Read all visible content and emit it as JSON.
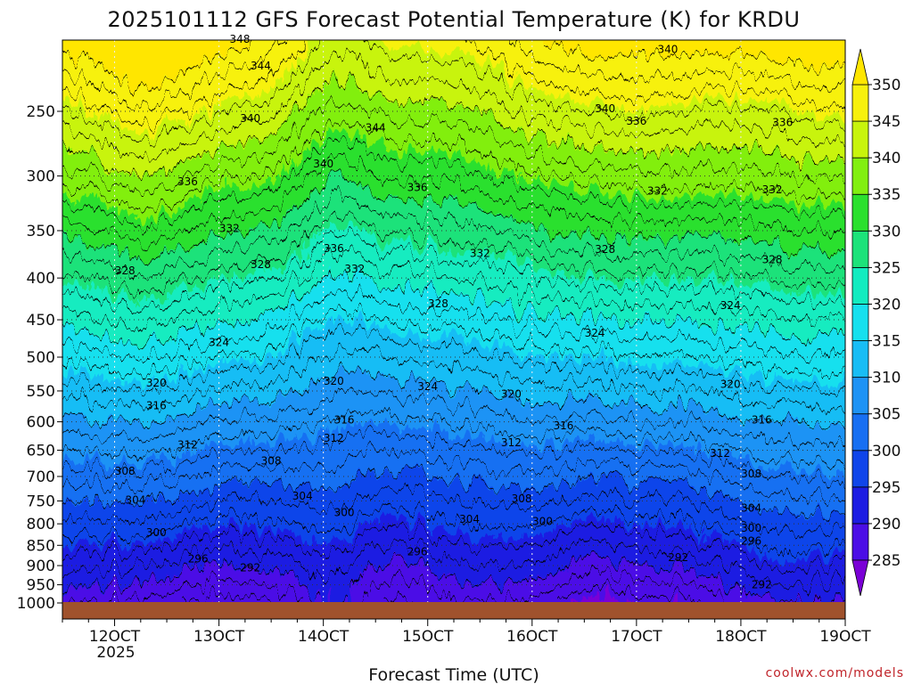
{
  "chart_data": {
    "type": "heatmap",
    "title": "2025101112 GFS Forecast Potential Temperature (K) for KRDU",
    "xlabel": "Forecast Time (UTC)",
    "ylabel": "",
    "credit": "coolwx.com/models",
    "x_ticks": [
      "12OCT",
      "13OCT",
      "14OCT",
      "15OCT",
      "16OCT",
      "17OCT",
      "18OCT",
      "19OCT"
    ],
    "x_tick_days": [
      12,
      13,
      14,
      15,
      16,
      17,
      18,
      19
    ],
    "x_year": "2025",
    "xlim": [
      11.5,
      19
    ],
    "y_ticks": [
      "250",
      "300",
      "350",
      "400",
      "450",
      "500",
      "550",
      "600",
      "650",
      "700",
      "750",
      "800",
      "850",
      "900",
      "950",
      "1000"
    ],
    "y_tick_values": [
      250,
      300,
      350,
      400,
      450,
      500,
      550,
      600,
      650,
      700,
      750,
      800,
      850,
      900,
      950,
      1000
    ],
    "ylim": [
      1000,
      200
    ],
    "y_scale": "log-pressure",
    "colorbar": {
      "levels": [
        "285",
        "290",
        "295",
        "300",
        "305",
        "310",
        "315",
        "320",
        "325",
        "330",
        "335",
        "340",
        "345",
        "350"
      ],
      "colors": [
        "#7a00d6",
        "#4b0ee6",
        "#1c1ce2",
        "#0f45ea",
        "#176ff2",
        "#1e93f5",
        "#18bdf5",
        "#16e0ee",
        "#12ecc0",
        "#1ce27a",
        "#2be02e",
        "#82ef10",
        "#c8f40c",
        "#f7f10c",
        "#ffe600"
      ]
    },
    "contour_labels": [
      {
        "text": "348",
        "day": 13.2,
        "p": 204
      },
      {
        "text": "344",
        "day": 13.4,
        "p": 220
      },
      {
        "text": "340",
        "day": 13.3,
        "p": 255
      },
      {
        "text": "344",
        "day": 14.5,
        "p": 262
      },
      {
        "text": "340",
        "day": 14.0,
        "p": 290
      },
      {
        "text": "340",
        "day": 16.7,
        "p": 248
      },
      {
        "text": "340",
        "day": 17.3,
        "p": 210
      },
      {
        "text": "336",
        "day": 17.0,
        "p": 257
      },
      {
        "text": "336",
        "day": 18.4,
        "p": 258
      },
      {
        "text": "336",
        "day": 12.7,
        "p": 305
      },
      {
        "text": "336",
        "day": 14.9,
        "p": 310
      },
      {
        "text": "336",
        "day": 14.1,
        "p": 368
      },
      {
        "text": "332",
        "day": 13.1,
        "p": 348
      },
      {
        "text": "332",
        "day": 14.3,
        "p": 390
      },
      {
        "text": "332",
        "day": 15.5,
        "p": 373
      },
      {
        "text": "332",
        "day": 17.2,
        "p": 313
      },
      {
        "text": "332",
        "day": 18.3,
        "p": 312
      },
      {
        "text": "328",
        "day": 12.1,
        "p": 392
      },
      {
        "text": "328",
        "day": 13.4,
        "p": 385
      },
      {
        "text": "328",
        "day": 15.1,
        "p": 430
      },
      {
        "text": "328",
        "day": 16.7,
        "p": 369
      },
      {
        "text": "328",
        "day": 18.3,
        "p": 380
      },
      {
        "text": "324",
        "day": 13.0,
        "p": 480
      },
      {
        "text": "324",
        "day": 15.0,
        "p": 543
      },
      {
        "text": "324",
        "day": 16.6,
        "p": 467
      },
      {
        "text": "324",
        "day": 17.9,
        "p": 432
      },
      {
        "text": "320",
        "day": 12.4,
        "p": 538
      },
      {
        "text": "320",
        "day": 14.1,
        "p": 535
      },
      {
        "text": "320",
        "day": 15.8,
        "p": 555
      },
      {
        "text": "320",
        "day": 17.9,
        "p": 540
      },
      {
        "text": "316",
        "day": 12.4,
        "p": 573
      },
      {
        "text": "316",
        "day": 14.2,
        "p": 597
      },
      {
        "text": "316",
        "day": 16.3,
        "p": 607
      },
      {
        "text": "316",
        "day": 18.2,
        "p": 597
      },
      {
        "text": "312",
        "day": 12.7,
        "p": 640
      },
      {
        "text": "312",
        "day": 14.1,
        "p": 628
      },
      {
        "text": "312",
        "day": 15.8,
        "p": 636
      },
      {
        "text": "312",
        "day": 17.8,
        "p": 656
      },
      {
        "text": "308",
        "day": 12.1,
        "p": 690
      },
      {
        "text": "308",
        "day": 13.5,
        "p": 670
      },
      {
        "text": "308",
        "day": 15.9,
        "p": 745
      },
      {
        "text": "308",
        "day": 18.1,
        "p": 695
      },
      {
        "text": "304",
        "day": 12.2,
        "p": 748
      },
      {
        "text": "304",
        "day": 13.8,
        "p": 740
      },
      {
        "text": "304",
        "day": 15.4,
        "p": 790
      },
      {
        "text": "304",
        "day": 18.1,
        "p": 765
      },
      {
        "text": "300",
        "day": 12.4,
        "p": 820
      },
      {
        "text": "300",
        "day": 14.2,
        "p": 775
      },
      {
        "text": "300",
        "day": 16.1,
        "p": 795
      },
      {
        "text": "300",
        "day": 18.1,
        "p": 810
      },
      {
        "text": "296",
        "day": 12.8,
        "p": 883
      },
      {
        "text": "296",
        "day": 14.9,
        "p": 866
      },
      {
        "text": "296",
        "day": 18.1,
        "p": 840
      },
      {
        "text": "292",
        "day": 13.3,
        "p": 905
      },
      {
        "text": "292",
        "day": 17.4,
        "p": 880
      },
      {
        "text": "292",
        "day": 18.2,
        "p": 950
      }
    ]
  }
}
